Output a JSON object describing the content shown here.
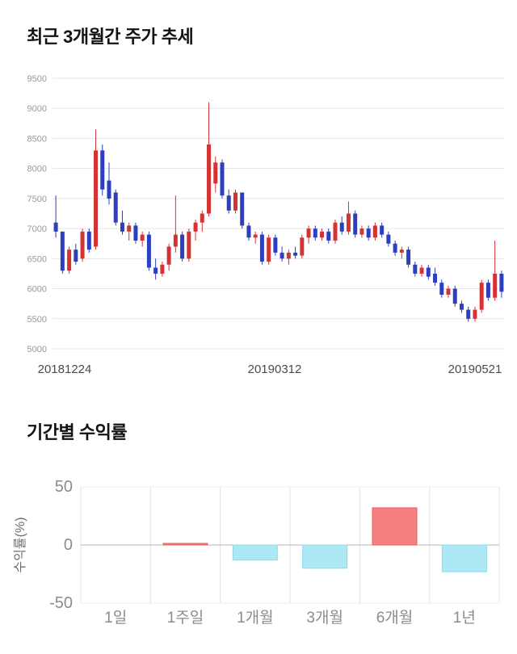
{
  "page": {
    "background": "#ffffff"
  },
  "chart_data": [
    {
      "type": "candlestick",
      "title": "최근 3개월간 주가 추세",
      "xlabel": "",
      "ylabel": "",
      "ylim": [
        5000,
        9500
      ],
      "yticks": [
        9500,
        9000,
        8500,
        8000,
        7500,
        7000,
        6500,
        6000,
        5500,
        5000
      ],
      "xticks": [
        "20181224",
        "20190312",
        "20190521"
      ],
      "grid": "horizontal",
      "up_color": "#d53333",
      "down_color": "#2d3fc0",
      "candles_format": [
        "open",
        "high",
        "low",
        "close"
      ],
      "candles": [
        [
          7100,
          7550,
          6850,
          6950
        ],
        [
          6950,
          6950,
          6250,
          6300
        ],
        [
          6300,
          6700,
          6250,
          6650
        ],
        [
          6650,
          6750,
          6400,
          6450
        ],
        [
          6500,
          7000,
          6450,
          6950
        ],
        [
          6950,
          7000,
          6600,
          6650
        ],
        [
          6700,
          8650,
          6650,
          8300
        ],
        [
          8300,
          8400,
          7550,
          7650
        ],
        [
          7800,
          8100,
          7400,
          7500
        ],
        [
          7600,
          7650,
          7050,
          7100
        ],
        [
          7100,
          7300,
          6900,
          6950
        ],
        [
          6950,
          7100,
          6800,
          7050
        ],
        [
          7050,
          7100,
          6750,
          6800
        ],
        [
          6800,
          6950,
          6700,
          6900
        ],
        [
          6900,
          6950,
          6300,
          6350
        ],
        [
          6350,
          6500,
          6150,
          6250
        ],
        [
          6250,
          6450,
          6200,
          6400
        ],
        [
          6400,
          6750,
          6300,
          6700
        ],
        [
          6700,
          7550,
          6600,
          6900
        ],
        [
          6900,
          6950,
          6450,
          6500
        ],
        [
          6500,
          7000,
          6450,
          6950
        ],
        [
          6950,
          7150,
          6800,
          7100
        ],
        [
          7100,
          7300,
          6950,
          7250
        ],
        [
          7250,
          9100,
          7200,
          8400
        ],
        [
          7750,
          8200,
          7600,
          8100
        ],
        [
          8100,
          8150,
          7500,
          7550
        ],
        [
          7550,
          7650,
          7250,
          7300
        ],
        [
          7300,
          7650,
          7250,
          7600
        ],
        [
          7600,
          7600,
          7000,
          7050
        ],
        [
          7050,
          7100,
          6800,
          6850
        ],
        [
          6850,
          6950,
          6750,
          6900
        ],
        [
          6900,
          6950,
          6400,
          6450
        ],
        [
          6450,
          6900,
          6400,
          6850
        ],
        [
          6850,
          6900,
          6550,
          6600
        ],
        [
          6600,
          6700,
          6450,
          6500
        ],
        [
          6500,
          6650,
          6400,
          6600
        ],
        [
          6600,
          6700,
          6500,
          6550
        ],
        [
          6550,
          6900,
          6500,
          6850
        ],
        [
          6850,
          7050,
          6750,
          7000
        ],
        [
          7000,
          7050,
          6800,
          6850
        ],
        [
          6850,
          7000,
          6800,
          6950
        ],
        [
          6950,
          7000,
          6750,
          6800
        ],
        [
          6800,
          7150,
          6750,
          7100
        ],
        [
          7100,
          7200,
          6900,
          6950
        ],
        [
          6950,
          7450,
          6900,
          7250
        ],
        [
          7250,
          7300,
          6850,
          6900
        ],
        [
          6900,
          7050,
          6850,
          7000
        ],
        [
          7000,
          7050,
          6800,
          6850
        ],
        [
          6850,
          7100,
          6800,
          7050
        ],
        [
          7050,
          7100,
          6850,
          6900
        ],
        [
          6900,
          6950,
          6700,
          6750
        ],
        [
          6750,
          6800,
          6550,
          6600
        ],
        [
          6600,
          6700,
          6500,
          6650
        ],
        [
          6650,
          6700,
          6350,
          6400
        ],
        [
          6400,
          6450,
          6200,
          6250
        ],
        [
          6250,
          6400,
          6200,
          6350
        ],
        [
          6350,
          6400,
          6150,
          6200
        ],
        [
          6250,
          6350,
          6050,
          6100
        ],
        [
          6100,
          6150,
          5850,
          5900
        ],
        [
          5900,
          6050,
          5850,
          6000
        ],
        [
          6000,
          6050,
          5700,
          5750
        ],
        [
          5750,
          5800,
          5600,
          5650
        ],
        [
          5650,
          5700,
          5450,
          5500
        ],
        [
          5500,
          5700,
          5450,
          5650
        ],
        [
          5650,
          6150,
          5600,
          6100
        ],
        [
          6100,
          6150,
          5800,
          5850
        ],
        [
          5850,
          6800,
          5800,
          6250
        ],
        [
          6250,
          6300,
          5850,
          5950
        ]
      ]
    },
    {
      "type": "bar",
      "title": "기간별 수익률",
      "xlabel": "",
      "ylabel": "수익률(%)",
      "ylim": [
        -50,
        50
      ],
      "yticks": [
        50,
        0,
        -50
      ],
      "grid": "on",
      "legend": "none",
      "categories": [
        "1일",
        "1주일",
        "1개월",
        "3개월",
        "6개월",
        "1년"
      ],
      "values": [
        0,
        1,
        -13,
        -20,
        32,
        -23
      ],
      "positive_color": "#f57e7e",
      "positive_stroke": "#e86060",
      "negative_color": "#ace9f5",
      "negative_stroke": "#8fd8ea"
    }
  ]
}
